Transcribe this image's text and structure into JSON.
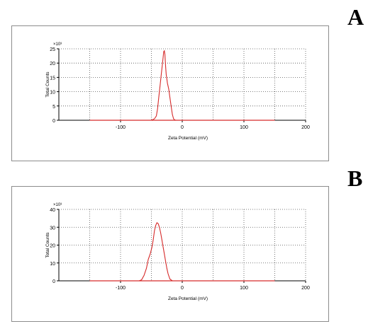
{
  "panels": [
    {
      "letter": "A"
    },
    {
      "letter": "B"
    }
  ],
  "colors": {
    "series": "#d62a2a",
    "baseline": "#d62a2a",
    "grid": "#555555"
  },
  "chart_data": [
    {
      "type": "line",
      "xlabel": "Zeta Potential (mV)",
      "ylabel": "Total Counts",
      "y_multiplier": "×10³",
      "xlim": [
        -200,
        200
      ],
      "ylim": [
        0,
        25
      ],
      "xticks": [
        -100,
        0,
        100,
        200
      ],
      "yticks": [
        0,
        5,
        10,
        15,
        20,
        25
      ],
      "grid": true,
      "baseline_range": [
        -150,
        150
      ],
      "series": [
        {
          "x": [
            -50,
            -45,
            -42,
            -40,
            -38,
            -36,
            -34,
            -32,
            -30,
            -29,
            -28,
            -27,
            -26,
            -25,
            -24,
            -22,
            -20,
            -18,
            -16,
            -14,
            -12,
            -10
          ],
          "y": [
            0,
            0.5,
            1.5,
            4,
            8,
            12,
            16,
            20,
            24,
            24.3,
            23,
            19,
            16,
            14.5,
            13,
            11,
            8,
            5,
            2,
            0.5,
            0.1,
            0
          ]
        }
      ]
    },
    {
      "type": "line",
      "xlabel": "Zeta Potential (mV)",
      "ylabel": "Total Counts",
      "y_multiplier": "×10³",
      "xlim": [
        -200,
        200
      ],
      "ylim": [
        0,
        40
      ],
      "xticks": [
        -100,
        0,
        100,
        200
      ],
      "yticks": [
        0,
        10,
        20,
        30,
        40
      ],
      "grid": true,
      "baseline_range": [
        -150,
        150
      ],
      "series": [
        {
          "x": [
            -70,
            -66,
            -62,
            -58,
            -55,
            -52,
            -49,
            -47,
            -45,
            -43,
            -41,
            -39,
            -37,
            -35,
            -33,
            -31,
            -29,
            -27,
            -25,
            -23,
            -20,
            -16
          ],
          "y": [
            0,
            0.5,
            3,
            7,
            12,
            15,
            19,
            23,
            28,
            31,
            32.5,
            32,
            30,
            27,
            23,
            19,
            15,
            11,
            7,
            4,
            1,
            0
          ]
        }
      ]
    }
  ]
}
